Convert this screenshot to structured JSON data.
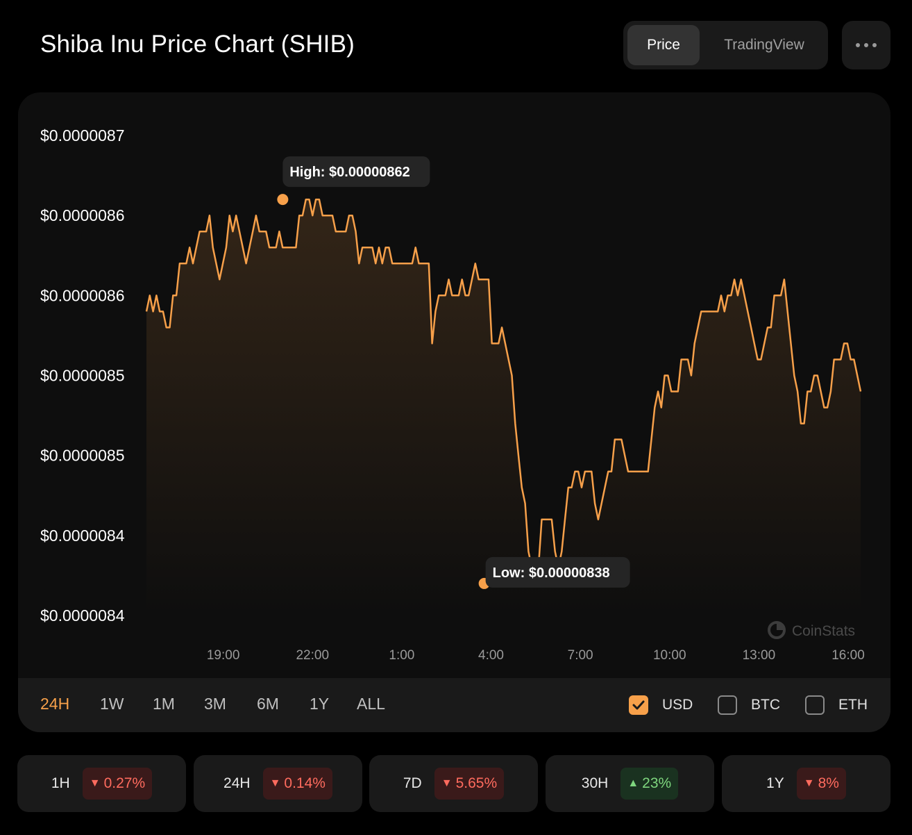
{
  "header": {
    "title": "Shiba Inu Price Chart (SHIB)",
    "price_label": "Price",
    "tradingview_label": "TradingView"
  },
  "chart_data": {
    "type": "area",
    "y_tick_labels": [
      "$0.0000087",
      "$0.0000086",
      "$0.0000086",
      "$0.0000085",
      "$0.0000085",
      "$0.0000084",
      "$0.0000084"
    ],
    "y_tick_values": [
      8.66e-06,
      8.61e-06,
      8.56e-06,
      8.51e-06,
      8.46e-06,
      8.41e-06,
      8.36e-06
    ],
    "ylim": [
      8.36e-06,
      8.66e-06
    ],
    "x_tick_labels": [
      "19:00",
      "22:00",
      "1:00",
      "4:00",
      "7:00",
      "10:00",
      "13:00",
      "16:00"
    ],
    "x_tick_hours": [
      2.58,
      5.58,
      8.58,
      11.58,
      14.58,
      17.58,
      20.58,
      23.58
    ],
    "xlim_hours": [
      0,
      24
    ],
    "high": {
      "label": "High: $0.00000862",
      "hour": 4.58,
      "value": 8.62e-06
    },
    "low": {
      "label": "Low: $0.00000838",
      "hour": 11.35,
      "value": 8.38e-06
    },
    "watermark": "CoinStats",
    "line_color": "#f7a04a",
    "series": [
      {
        "values": [
          8.55e-06,
          8.56e-06,
          8.55e-06,
          8.56e-06,
          8.55e-06,
          8.55e-06,
          8.54e-06,
          8.54e-06,
          8.56e-06,
          8.56e-06,
          8.58e-06,
          8.58e-06,
          8.58e-06,
          8.59e-06,
          8.58e-06,
          8.59e-06,
          8.6e-06,
          8.6e-06,
          8.6e-06,
          8.61e-06,
          8.59e-06,
          8.58e-06,
          8.57e-06,
          8.58e-06,
          8.59e-06,
          8.61e-06,
          8.6e-06,
          8.61e-06,
          8.6e-06,
          8.59e-06,
          8.58e-06,
          8.59e-06,
          8.6e-06,
          8.61e-06,
          8.6e-06,
          8.6e-06,
          8.6e-06,
          8.59e-06,
          8.59e-06,
          8.59e-06,
          8.6e-06,
          8.59e-06,
          8.59e-06,
          8.59e-06,
          8.59e-06,
          8.59e-06,
          8.61e-06,
          8.61e-06,
          8.62e-06,
          8.62e-06,
          8.61e-06,
          8.62e-06,
          8.62e-06,
          8.61e-06,
          8.61e-06,
          8.61e-06,
          8.61e-06,
          8.6e-06,
          8.6e-06,
          8.6e-06,
          8.6e-06,
          8.61e-06,
          8.61e-06,
          8.6e-06,
          8.58e-06,
          8.59e-06,
          8.59e-06,
          8.59e-06,
          8.59e-06,
          8.58e-06,
          8.59e-06,
          8.58e-06,
          8.59e-06,
          8.59e-06,
          8.58e-06,
          8.58e-06,
          8.58e-06,
          8.58e-06,
          8.58e-06,
          8.58e-06,
          8.58e-06,
          8.59e-06,
          8.58e-06,
          8.58e-06,
          8.58e-06,
          8.58e-06,
          8.53e-06,
          8.55e-06,
          8.56e-06,
          8.56e-06,
          8.56e-06,
          8.57e-06,
          8.56e-06,
          8.56e-06,
          8.56e-06,
          8.57e-06,
          8.56e-06,
          8.56e-06,
          8.57e-06,
          8.58e-06,
          8.57e-06,
          8.57e-06,
          8.57e-06,
          8.57e-06,
          8.53e-06,
          8.53e-06,
          8.53e-06,
          8.54e-06,
          8.53e-06,
          8.52e-06,
          8.51e-06,
          8.48e-06,
          8.46e-06,
          8.44e-06,
          8.43e-06,
          8.4e-06,
          8.39e-06,
          8.38e-06,
          8.39e-06,
          8.42e-06,
          8.42e-06,
          8.42e-06,
          8.42e-06,
          8.4e-06,
          8.39e-06,
          8.4e-06,
          8.42e-06,
          8.44e-06,
          8.44e-06,
          8.45e-06,
          8.45e-06,
          8.44e-06,
          8.45e-06,
          8.45e-06,
          8.45e-06,
          8.43e-06,
          8.42e-06,
          8.43e-06,
          8.44e-06,
          8.45e-06,
          8.45e-06,
          8.47e-06,
          8.47e-06,
          8.47e-06,
          8.46e-06,
          8.45e-06,
          8.45e-06,
          8.45e-06,
          8.45e-06,
          8.45e-06,
          8.45e-06,
          8.45e-06,
          8.47e-06,
          8.49e-06,
          8.5e-06,
          8.49e-06,
          8.51e-06,
          8.51e-06,
          8.5e-06,
          8.5e-06,
          8.5e-06,
          8.52e-06,
          8.52e-06,
          8.52e-06,
          8.51e-06,
          8.53e-06,
          8.54e-06,
          8.55e-06,
          8.55e-06,
          8.55e-06,
          8.55e-06,
          8.55e-06,
          8.55e-06,
          8.56e-06,
          8.55e-06,
          8.56e-06,
          8.56e-06,
          8.57e-06,
          8.56e-06,
          8.57e-06,
          8.56e-06,
          8.55e-06,
          8.54e-06,
          8.53e-06,
          8.52e-06,
          8.52e-06,
          8.53e-06,
          8.54e-06,
          8.54e-06,
          8.56e-06,
          8.56e-06,
          8.56e-06,
          8.57e-06,
          8.55e-06,
          8.53e-06,
          8.51e-06,
          8.5e-06,
          8.48e-06,
          8.48e-06,
          8.5e-06,
          8.5e-06,
          8.51e-06,
          8.51e-06,
          8.5e-06,
          8.49e-06,
          8.49e-06,
          8.5e-06,
          8.52e-06,
          8.52e-06,
          8.52e-06,
          8.53e-06,
          8.53e-06,
          8.52e-06,
          8.52e-06,
          8.51e-06,
          8.5e-06
        ]
      }
    ]
  },
  "ranges": [
    "24H",
    "1W",
    "1M",
    "3M",
    "6M",
    "1Y",
    "ALL"
  ],
  "active_range": "24H",
  "currencies": [
    {
      "label": "USD",
      "checked": true
    },
    {
      "label": "BTC",
      "checked": false
    },
    {
      "label": "ETH",
      "checked": false
    }
  ],
  "stats": [
    {
      "period": "1H",
      "change": "0.27%",
      "direction": "down"
    },
    {
      "period": "24H",
      "change": "0.14%",
      "direction": "down"
    },
    {
      "period": "7D",
      "change": "5.65%",
      "direction": "down"
    },
    {
      "period": "30H",
      "change": "23%",
      "direction": "up"
    },
    {
      "period": "1Y",
      "change": "8%",
      "direction": "down"
    }
  ],
  "colors": {
    "accent": "#f7a04a",
    "down": "#ff6b5e",
    "up": "#7ed67e",
    "background": "#000000",
    "card": "#0e0e0e"
  }
}
